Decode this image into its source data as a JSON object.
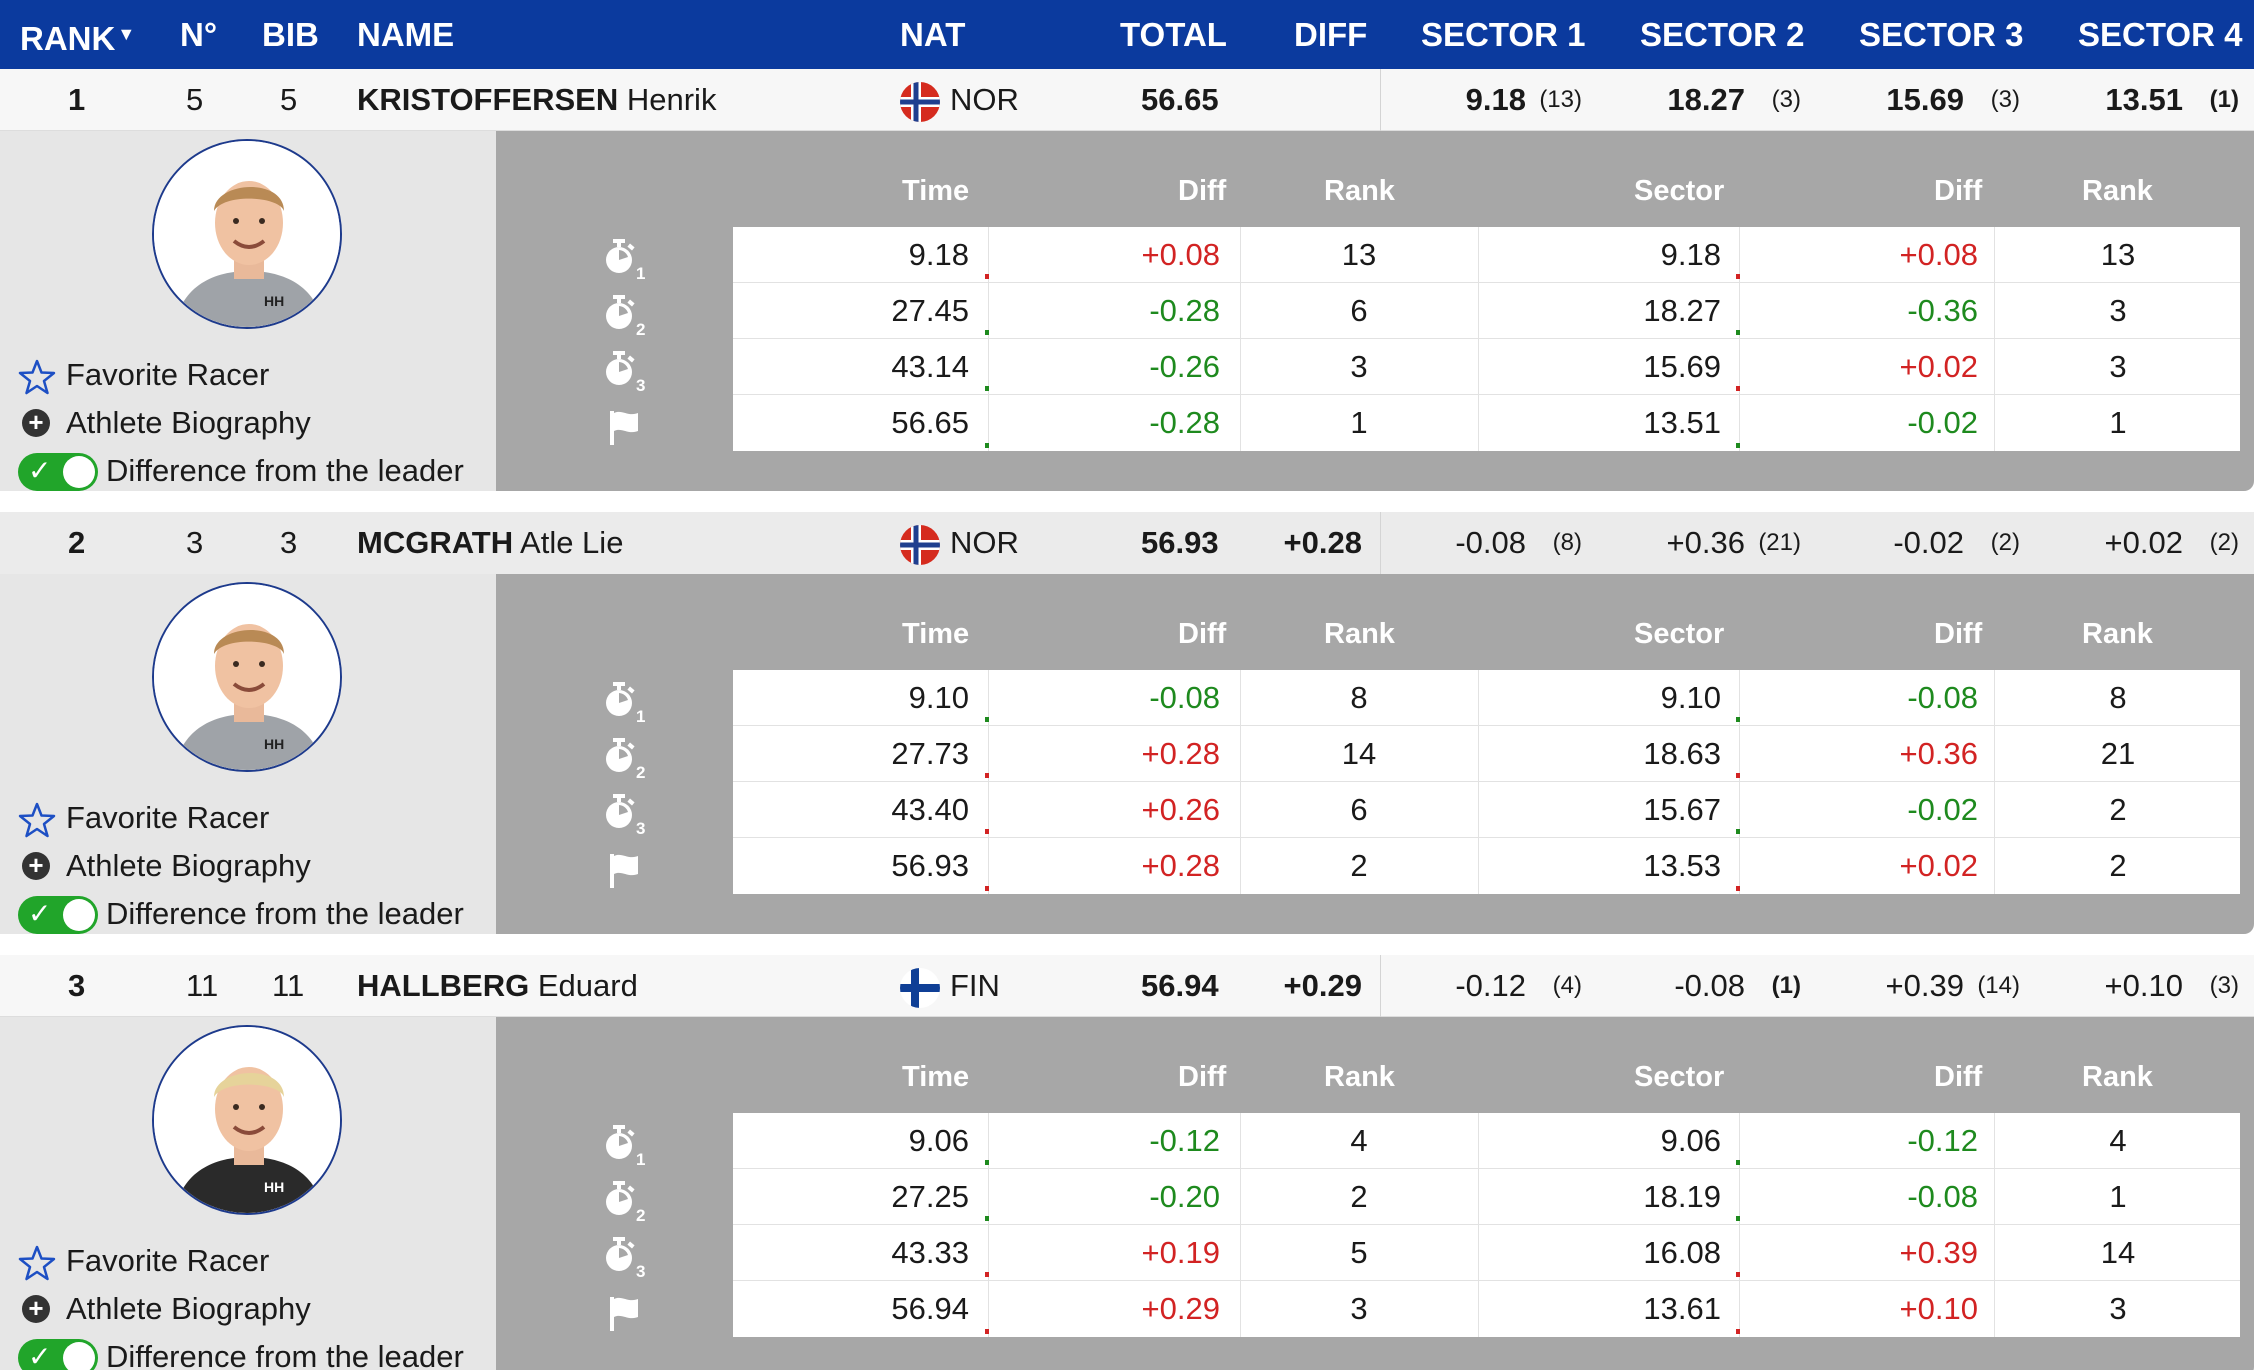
{
  "header": {
    "rank": "RANK",
    "no": "N°",
    "bib": "BIB",
    "name": "NAME",
    "nat": "NAT",
    "total": "TOTAL",
    "diff": "DIFF",
    "sector1": "SECTOR 1",
    "sector2": "SECTOR 2",
    "sector3": "SECTOR 3",
    "sector4": "SECTOR 4"
  },
  "colors": {
    "header_bg": "#0b3a9e",
    "positive": "#d22323",
    "negative": "#1e8a1e",
    "toggle_on": "#21a52a"
  },
  "labels": {
    "favorite": "Favorite Racer",
    "biography": "Athlete Biography",
    "difference": "Difference from the leader",
    "time": "Time",
    "diff": "Diff",
    "rank": "Rank",
    "sector": "Sector"
  },
  "icons": [
    "stopwatch-1-icon",
    "stopwatch-2-icon",
    "stopwatch-3-icon",
    "finish-flag-icon",
    "star-icon",
    "plus-circle-icon",
    "toggle-switch"
  ],
  "athletes": [
    {
      "rank": "1",
      "no": "5",
      "bib": "5",
      "last": "KRISTOFFERSEN",
      "first": "Henrik",
      "nat": "NOR",
      "flag": "nor",
      "total": "56.65",
      "diff": "",
      "sectors": [
        {
          "v": "9.18",
          "r": "(13)"
        },
        {
          "v": "18.27",
          "r": "(3)"
        },
        {
          "v": "15.69",
          "r": "(3)"
        },
        {
          "v": "13.51",
          "r": "(1)"
        }
      ],
      "splits": [
        {
          "time": "9.18",
          "diff": "+0.08",
          "rank": "13",
          "sector": "9.18",
          "sdiff": "+0.08",
          "srank": "13"
        },
        {
          "time": "27.45",
          "diff": "-0.28",
          "rank": "6",
          "sector": "18.27",
          "sdiff": "-0.36",
          "srank": "3"
        },
        {
          "time": "43.14",
          "diff": "-0.26",
          "rank": "3",
          "sector": "15.69",
          "sdiff": "+0.02",
          "srank": "3"
        },
        {
          "time": "56.65",
          "diff": "-0.28",
          "rank": "1",
          "sector": "13.51",
          "sdiff": "-0.02",
          "srank": "1"
        }
      ]
    },
    {
      "rank": "2",
      "no": "3",
      "bib": "3",
      "last": "MCGRATH",
      "first": "Atle Lie",
      "nat": "NOR",
      "flag": "nor",
      "total": "56.93",
      "diff": "+0.28",
      "sectors": [
        {
          "v": "-0.08",
          "r": "(8)"
        },
        {
          "v": "+0.36",
          "r": "(21)"
        },
        {
          "v": "-0.02",
          "r": "(2)"
        },
        {
          "v": "+0.02",
          "r": "(2)"
        }
      ],
      "splits": [
        {
          "time": "9.10",
          "diff": "-0.08",
          "rank": "8",
          "sector": "9.10",
          "sdiff": "-0.08",
          "srank": "8"
        },
        {
          "time": "27.73",
          "diff": "+0.28",
          "rank": "14",
          "sector": "18.63",
          "sdiff": "+0.36",
          "srank": "21"
        },
        {
          "time": "43.40",
          "diff": "+0.26",
          "rank": "6",
          "sector": "15.67",
          "sdiff": "-0.02",
          "srank": "2"
        },
        {
          "time": "56.93",
          "diff": "+0.28",
          "rank": "2",
          "sector": "13.53",
          "sdiff": "+0.02",
          "srank": "2"
        }
      ]
    },
    {
      "rank": "3",
      "no": "11",
      "bib": "11",
      "last": "HALLBERG",
      "first": "Eduard",
      "nat": "FIN",
      "flag": "fin",
      "total": "56.94",
      "diff": "+0.29",
      "sectors": [
        {
          "v": "-0.12",
          "r": "(4)"
        },
        {
          "v": "-0.08",
          "r": "(1)"
        },
        {
          "v": "+0.39",
          "r": "(14)"
        },
        {
          "v": "+0.10",
          "r": "(3)"
        }
      ],
      "splits": [
        {
          "time": "9.06",
          "diff": "-0.12",
          "rank": "4",
          "sector": "9.06",
          "sdiff": "-0.12",
          "srank": "4"
        },
        {
          "time": "27.25",
          "diff": "-0.20",
          "rank": "2",
          "sector": "18.19",
          "sdiff": "-0.08",
          "srank": "1"
        },
        {
          "time": "43.33",
          "diff": "+0.19",
          "rank": "5",
          "sector": "16.08",
          "sdiff": "+0.39",
          "srank": "14"
        },
        {
          "time": "56.94",
          "diff": "+0.29",
          "rank": "3",
          "sector": "13.61",
          "sdiff": "+0.10",
          "srank": "3"
        }
      ]
    }
  ]
}
